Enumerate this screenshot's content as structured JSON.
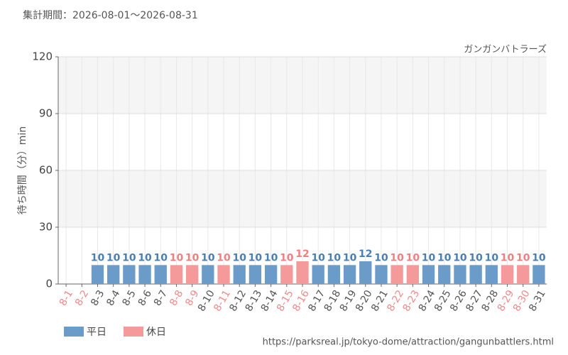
{
  "chart_data": {
    "type": "bar",
    "title": "集計期間：2026-08-01～2026-08-31",
    "subtitle": "ガンガンバトラーズ",
    "y_label": "待ち時間（分）min",
    "source": "https://parksreal.jp/tokyo-dome/attraction/gangunbattlers.html",
    "categories": [
      "8-1",
      "8-2",
      "8-3",
      "8-4",
      "8-5",
      "8-6",
      "8-7",
      "8-8",
      "8-9",
      "8-10",
      "8-11",
      "8-12",
      "8-13",
      "8-14",
      "8-15",
      "8-16",
      "8-17",
      "8-18",
      "8-19",
      "8-20",
      "8-21",
      "8-22",
      "8-23",
      "8-24",
      "8-25",
      "8-26",
      "8-27",
      "8-28",
      "8-29",
      "8-30",
      "8-31"
    ],
    "category_label_colors": [
      "#f08a8a",
      "#f08a8a",
      "#555555",
      "#555555",
      "#555555",
      "#555555",
      "#555555",
      "#f08a8a",
      "#f08a8a",
      "#555555",
      "#f08a8a",
      "#555555",
      "#555555",
      "#555555",
      "#f08a8a",
      "#f08a8a",
      "#555555",
      "#555555",
      "#555555",
      "#555555",
      "#555555",
      "#f08a8a",
      "#f08a8a",
      "#555555",
      "#555555",
      "#555555",
      "#555555",
      "#555555",
      "#f08a8a",
      "#f08a8a",
      "#555555"
    ],
    "series": [
      {
        "name": "平日",
        "color": "#6b9bc8",
        "label_color": "#4a7fb0",
        "values": [
          null,
          null,
          10,
          10,
          10,
          10,
          10,
          null,
          null,
          10,
          null,
          10,
          10,
          10,
          null,
          null,
          10,
          10,
          10,
          12,
          10,
          null,
          null,
          10,
          10,
          10,
          10,
          10,
          null,
          null,
          10
        ]
      },
      {
        "name": "休日",
        "color": "#f59a9a",
        "label_color": "#f08080",
        "values": [
          null,
          null,
          null,
          null,
          null,
          null,
          null,
          10,
          10,
          null,
          10,
          null,
          null,
          null,
          10,
          12,
          null,
          null,
          null,
          null,
          null,
          10,
          10,
          null,
          null,
          null,
          null,
          null,
          10,
          10,
          null
        ]
      }
    ],
    "ylim": [
      0,
      120
    ],
    "yticks": [
      0,
      30,
      60,
      90,
      120
    ],
    "grid": true
  }
}
